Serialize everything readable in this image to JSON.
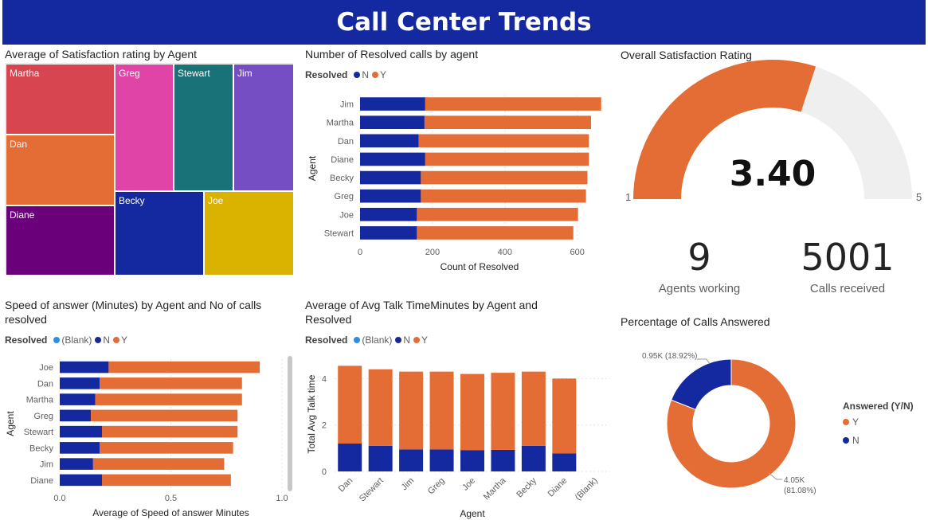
{
  "header": {
    "title": "Call Center Trends"
  },
  "colors": {
    "navy": "#1428a0",
    "orange": "#e46c35",
    "blank": "#2b8fe8",
    "track": "#f0efef"
  },
  "treemap": {
    "title": "Average of Satisfaction rating by Agent",
    "tiles": [
      {
        "label": "Martha",
        "color": "#d64550"
      },
      {
        "label": "Greg",
        "color": "#e044a7"
      },
      {
        "label": "Stewart",
        "color": "#197278"
      },
      {
        "label": "Jim",
        "color": "#744ec2"
      },
      {
        "label": "Dan",
        "color": "#e46c35"
      },
      {
        "label": "Becky",
        "color": "#1428a0"
      },
      {
        "label": "Joe",
        "color": "#d9b300"
      },
      {
        "label": "Diane",
        "color": "#6b007b"
      }
    ]
  },
  "resolved_chart": {
    "title": "Number of Resolved calls by agent",
    "legend_title": "Resolved",
    "legend": [
      "N",
      "Y"
    ]
  },
  "gauge": {
    "title": "Overall Satisfaction Rating",
    "value": "3.40",
    "min": "1",
    "max": "5"
  },
  "kpis": [
    {
      "value": "9",
      "label": "Agents working"
    },
    {
      "value": "5001",
      "label": "Calls received"
    }
  ],
  "speed_chart": {
    "title": "Speed of answer (Minutes) by Agent and No of calls resolved",
    "legend_title": "Resolved",
    "legend": [
      "(Blank)",
      "N",
      "Y"
    ]
  },
  "talk_chart": {
    "title": "Average of Avg Talk TimeMinutes by Agent and Resolved",
    "legend_title": "Resolved",
    "legend": [
      "(Blank)",
      "N",
      "Y"
    ]
  },
  "donut": {
    "title": "Percentage of Calls Answered",
    "legend_title": "Answered (Y/N)",
    "legend": [
      "Y",
      "N"
    ],
    "label_n": "0.95K (18.92%)",
    "label_y_value": "4.05K",
    "label_y_pct": "(81.08%)"
  },
  "chart_data": [
    {
      "id": "resolved",
      "type": "bar",
      "orientation": "horizontal",
      "stacked": true,
      "title": "Number of Resolved calls by agent",
      "categories": [
        "Jim",
        "Martha",
        "Dan",
        "Diane",
        "Becky",
        "Greg",
        "Joe",
        "Stewart"
      ],
      "series": [
        {
          "name": "N",
          "values": [
            180,
            178,
            162,
            180,
            168,
            168,
            157,
            157
          ]
        },
        {
          "name": "Y",
          "values": [
            486,
            460,
            470,
            452,
            460,
            456,
            445,
            432
          ]
        }
      ],
      "xlabel": "Count of Resolved",
      "ylabel": "Agent",
      "xlim": [
        0,
        660
      ],
      "xticks": [
        0,
        200,
        400,
        600
      ]
    },
    {
      "id": "speed",
      "type": "bar",
      "orientation": "horizontal",
      "stacked": true,
      "title": "Speed of answer (Minutes) by Agent and No of calls resolved",
      "categories": [
        "Joe",
        "Dan",
        "Martha",
        "Greg",
        "Stewart",
        "Becky",
        "Jim",
        "Diane"
      ],
      "series": [
        {
          "name": "(Blank)",
          "values": [
            0,
            0,
            0,
            0,
            0,
            0,
            0,
            0
          ]
        },
        {
          "name": "N",
          "values": [
            0.22,
            0.18,
            0.16,
            0.14,
            0.19,
            0.18,
            0.15,
            0.19
          ]
        },
        {
          "name": "Y",
          "values": [
            0.68,
            0.64,
            0.66,
            0.66,
            0.61,
            0.6,
            0.59,
            0.58
          ]
        }
      ],
      "xlabel": "Average of Speed of answer Minutes",
      "ylabel": "Agent",
      "xlim": [
        0,
        1.0
      ],
      "xticks": [
        "0.0",
        "0.5",
        "1.0"
      ]
    },
    {
      "id": "talk",
      "type": "bar",
      "orientation": "vertical",
      "stacked": true,
      "title": "Average of Avg Talk TimeMinutes by Agent and Resolved",
      "categories": [
        "Dan",
        "Stewart",
        "Jim",
        "Greg",
        "Joe",
        "Martha",
        "Becky",
        "Diane",
        "(Blank)"
      ],
      "series": [
        {
          "name": "(Blank)",
          "values": [
            0,
            0,
            0,
            0,
            0,
            0,
            0,
            0,
            0
          ]
        },
        {
          "name": "N",
          "values": [
            1.2,
            1.1,
            0.95,
            0.95,
            0.92,
            0.93,
            1.1,
            0.78,
            0
          ]
        },
        {
          "name": "Y",
          "values": [
            3.35,
            3.3,
            3.35,
            3.35,
            3.28,
            3.32,
            3.2,
            3.22,
            0
          ]
        }
      ],
      "xlabel": "Agent",
      "ylabel": "Total Avg Talk time",
      "ylim": [
        0,
        4.7
      ],
      "yticks": [
        0,
        2,
        4
      ]
    },
    {
      "id": "answered",
      "type": "pie",
      "donut": true,
      "title": "Percentage of Calls Answered",
      "labels": [
        "Y",
        "N"
      ],
      "values": [
        4050,
        950
      ],
      "percent": [
        81.08,
        18.92
      ]
    },
    {
      "id": "satisfaction",
      "type": "gauge",
      "title": "Overall Satisfaction Rating",
      "value": 3.4,
      "min": 1,
      "max": 5
    }
  ]
}
